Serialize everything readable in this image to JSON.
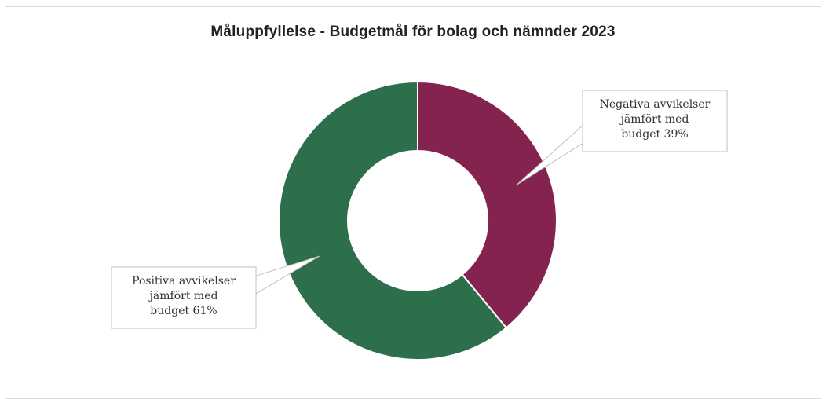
{
  "chart_data": {
    "type": "pie",
    "title": "Måluppfyllelse - Budgetmål för bolag och nämnder 2023",
    "categories": [
      "Negativa avvikelser jämfört med budget",
      "Positiva avvikelser jämfört med budget"
    ],
    "values": [
      39,
      61
    ],
    "unit": "%",
    "donut": true,
    "colors": [
      "#84234f",
      "#2d6e4b"
    ],
    "data_labels": [
      [
        "Negativa avvikelser",
        "jämfört med",
        "budget 39%"
      ],
      [
        "Positiva avvikelser",
        "jämfört med",
        "budget 61%"
      ]
    ],
    "legend": "none"
  }
}
